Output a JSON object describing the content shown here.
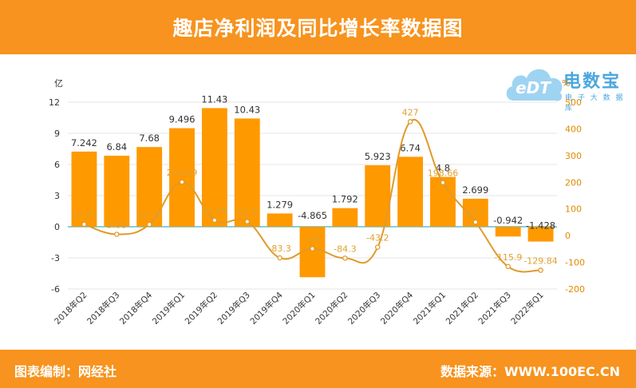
{
  "header": {
    "title": "趣店净利润及同比增长率数据图"
  },
  "footer": {
    "left": "图表编制：网经社",
    "right": "数据来源：WWW.100EC.CN"
  },
  "logo": {
    "cloud_text": "eDT",
    "brand": "电数宝",
    "sub": "电 子 大 数 据 库"
  },
  "colors": {
    "bar": "#ff9900",
    "line": "#e09a2a",
    "header": "#f7931e"
  },
  "chart_data": {
    "type": "bar",
    "title": "",
    "categories": [
      "2018年Q2",
      "2018年Q3",
      "2018年Q4",
      "2019年Q1",
      "2019年Q2",
      "2019年Q3",
      "2019年Q4",
      "2020年Q1",
      "2020年Q2",
      "2020年Q3",
      "2020年Q4",
      "2021年Q1",
      "2021年Q2",
      "2021年Q3",
      "2022年Q1"
    ],
    "y_left_unit": "亿",
    "y_right_unit": "%",
    "ylim_left": [
      -6,
      12
    ],
    "ylim_right": [
      -200,
      500
    ],
    "yticks_left": [
      "12",
      "9",
      "6",
      "3",
      "0",
      "-3",
      "-6"
    ],
    "yticks_right": [
      "500",
      "400",
      "300",
      "200",
      "100",
      "0",
      "-100",
      "-200"
    ],
    "series": [
      {
        "type": "bar",
        "values": [
          7.242,
          6.84,
          7.68,
          9.496,
          11.43,
          10.43,
          1.279,
          -4.865,
          1.792,
          5.923,
          6.74,
          4.8,
          2.699,
          -0.942,
          -1.428
        ],
        "labels": [
          "7.242",
          "6.84",
          "7.68",
          "9.496",
          "11.43",
          "10.43",
          "1.279",
          "-4.865",
          "1.792",
          "5.923",
          "6.74",
          "4.8",
          "2.699",
          "-0.942",
          "-1.428"
        ]
      },
      {
        "type": "line",
        "values": [
          42.41,
          5.08,
          42.11,
          200.69,
          57.89,
          52.6,
          -83.3,
          -49,
          -84.3,
          -43.2,
          427,
          198.66,
          50.7,
          -115.9,
          -129.84
        ],
        "labels": [
          "42.41",
          "5.08",
          "42.11",
          "200.69",
          "57.89",
          "52.6",
          "-83.3",
          "-49",
          "-84.3",
          "-43.2",
          "427",
          "198.66",
          "50.7",
          "-115.9",
          "-129.84"
        ]
      }
    ]
  }
}
